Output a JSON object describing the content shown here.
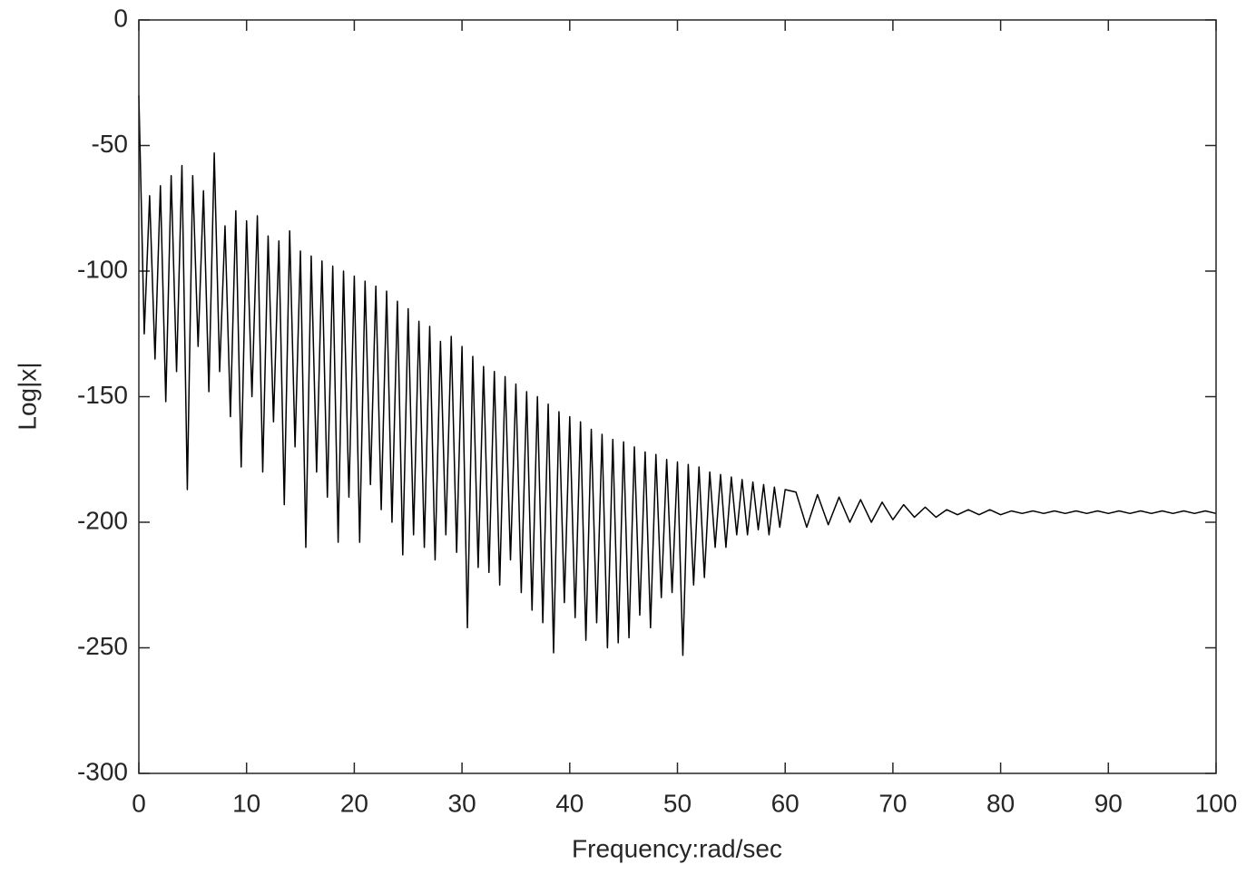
{
  "chart_data": {
    "type": "line",
    "xlabel": "Frequency:rad/sec",
    "ylabel": "Log|x|",
    "xlim": [
      0,
      100
    ],
    "ylim": [
      -300,
      0
    ],
    "xticks": [
      0,
      10,
      20,
      30,
      40,
      50,
      60,
      70,
      80,
      90,
      100
    ],
    "yticks": [
      -300,
      -250,
      -200,
      -150,
      -100,
      -50,
      0
    ],
    "grid": false,
    "color": "#000000",
    "x": [
      0,
      0.5,
      1,
      1.5,
      2,
      2.5,
      3,
      3.5,
      4,
      4.5,
      5,
      5.5,
      6,
      6.5,
      7,
      7.5,
      8,
      8.5,
      9,
      9.5,
      10,
      10.5,
      11,
      11.5,
      12,
      12.5,
      13,
      13.5,
      14,
      14.5,
      15,
      15.5,
      16,
      16.5,
      17,
      17.5,
      18,
      18.5,
      19,
      19.5,
      20,
      20.5,
      21,
      21.5,
      22,
      22.5,
      23,
      23.5,
      24,
      24.5,
      25,
      25.5,
      26,
      26.5,
      27,
      27.5,
      28,
      28.5,
      29,
      29.5,
      30,
      30.5,
      31,
      31.5,
      32,
      32.5,
      33,
      33.5,
      34,
      34.5,
      35,
      35.5,
      36,
      36.5,
      37,
      37.5,
      38,
      38.5,
      39,
      39.5,
      40,
      40.5,
      41,
      41.5,
      42,
      42.5,
      43,
      43.5,
      44,
      44.5,
      45,
      45.5,
      46,
      46.5,
      47,
      47.5,
      48,
      48.5,
      49,
      49.5,
      50,
      50.5,
      51,
      51.5,
      52,
      52.5,
      53,
      53.5,
      54,
      54.5,
      55,
      55.5,
      56,
      56.5,
      57,
      57.5,
      58,
      58.5,
      59,
      59.5,
      60,
      61,
      62,
      63,
      64,
      65,
      66,
      67,
      68,
      69,
      70,
      71,
      72,
      73,
      74,
      75,
      76,
      77,
      78,
      79,
      80,
      81,
      82,
      83,
      84,
      85,
      86,
      87,
      88,
      89,
      90,
      91,
      92,
      93,
      94,
      95,
      96,
      97,
      98,
      99,
      100
    ],
    "values": [
      -30,
      -125,
      -70,
      -135,
      -66,
      -152,
      -62,
      -140,
      -58,
      -187,
      -62,
      -130,
      -68,
      -148,
      -53,
      -140,
      -82,
      -158,
      -76,
      -178,
      -80,
      -150,
      -78,
      -180,
      -86,
      -160,
      -88,
      -193,
      -84,
      -170,
      -92,
      -210,
      -94,
      -180,
      -96,
      -190,
      -98,
      -208,
      -100,
      -190,
      -102,
      -208,
      -104,
      -185,
      -106,
      -195,
      -108,
      -200,
      -112,
      -213,
      -115,
      -205,
      -120,
      -210,
      -122,
      -215,
      -128,
      -205,
      -126,
      -212,
      -130,
      -242,
      -134,
      -218,
      -138,
      -220,
      -140,
      -225,
      -142,
      -215,
      -145,
      -228,
      -148,
      -235,
      -150,
      -240,
      -153,
      -252,
      -156,
      -232,
      -158,
      -238,
      -160,
      -247,
      -163,
      -240,
      -165,
      -250,
      -167,
      -248,
      -168,
      -246,
      -170,
      -237,
      -172,
      -242,
      -173,
      -230,
      -175,
      -228,
      -176,
      -253,
      -177,
      -225,
      -178,
      -222,
      -180,
      -210,
      -181,
      -210,
      -182,
      -205,
      -183,
      -205,
      -184,
      -203,
      -185,
      -205,
      -186,
      -202,
      -187,
      -188,
      -202,
      -189,
      -201,
      -190,
      -200,
      -191,
      -200,
      -192,
      -199,
      -193,
      -198,
      -194,
      -198,
      -195,
      -197,
      -195,
      -197,
      -195,
      -197,
      -195.5,
      -196.5,
      -195.5,
      -196.5,
      -195.5,
      -196.5,
      -195.5,
      -196.5,
      -195.5,
      -196.5,
      -195.5,
      -196.5,
      -195.5,
      -196.5,
      -195.5,
      -196.5,
      -195.5,
      -196.5,
      -195.5,
      -196.5
    ]
  }
}
